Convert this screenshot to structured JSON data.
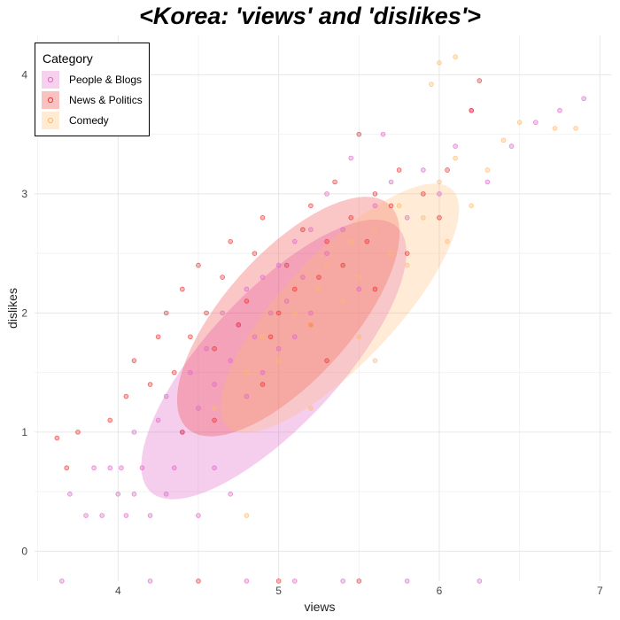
{
  "chart_data": {
    "type": "scatter",
    "title": "<Korea: 'views' and 'dislikes'>",
    "xlabel": "views",
    "ylabel": "dislikes",
    "xlim": [
      3.48,
      7.07
    ],
    "ylim": [
      -0.25,
      4.33
    ],
    "x_ticks": [
      4,
      5,
      6,
      7
    ],
    "y_ticks": [
      0,
      1,
      2,
      3,
      4
    ],
    "grid": true,
    "legend": {
      "title": "Category",
      "placement": "top-left"
    },
    "series": [
      {
        "name": "People & Blogs",
        "color": "#e066c8",
        "ellipse": {
          "center": [
            4.97,
            1.61
          ],
          "semi_axes": [
            1.36,
            0.48
          ],
          "angle_deg": 36
        },
        "points": [
          [
            3.7,
            0.48
          ],
          [
            3.8,
            0.3
          ],
          [
            3.85,
            0.7
          ],
          [
            3.9,
            0.3
          ],
          [
            3.95,
            0.7
          ],
          [
            4.0,
            0.48
          ],
          [
            4.02,
            0.7
          ],
          [
            4.05,
            0.3
          ],
          [
            4.1,
            1.0
          ],
          [
            4.1,
            0.48
          ],
          [
            4.15,
            0.7
          ],
          [
            4.2,
            0.3
          ],
          [
            4.25,
            1.1
          ],
          [
            4.3,
            0.48
          ],
          [
            4.3,
            1.3
          ],
          [
            4.35,
            0.7
          ],
          [
            4.4,
            1.0
          ],
          [
            4.45,
            1.5
          ],
          [
            4.5,
            0.3
          ],
          [
            4.5,
            1.2
          ],
          [
            4.55,
            1.7
          ],
          [
            4.6,
            0.7
          ],
          [
            4.6,
            1.4
          ],
          [
            4.65,
            2.0
          ],
          [
            4.7,
            1.6
          ],
          [
            4.7,
            0.48
          ],
          [
            4.75,
            1.9
          ],
          [
            4.8,
            2.2
          ],
          [
            4.8,
            1.3
          ],
          [
            4.85,
            1.8
          ],
          [
            4.9,
            2.3
          ],
          [
            4.9,
            1.5
          ],
          [
            4.95,
            2.0
          ],
          [
            5.0,
            2.4
          ],
          [
            5.0,
            1.7
          ],
          [
            5.05,
            2.1
          ],
          [
            5.1,
            2.6
          ],
          [
            5.1,
            1.8
          ],
          [
            5.15,
            2.3
          ],
          [
            5.2,
            2.7
          ],
          [
            5.2,
            2.0
          ],
          [
            5.3,
            2.5
          ],
          [
            5.3,
            3.0
          ],
          [
            5.4,
            2.7
          ],
          [
            5.45,
            3.3
          ],
          [
            5.5,
            2.2
          ],
          [
            5.6,
            2.9
          ],
          [
            5.65,
            3.5
          ],
          [
            5.7,
            3.1
          ],
          [
            5.8,
            2.8
          ],
          [
            5.9,
            3.2
          ],
          [
            6.0,
            3.0
          ],
          [
            6.1,
            3.4
          ],
          [
            6.2,
            3.7
          ],
          [
            6.3,
            3.1
          ],
          [
            6.45,
            3.4
          ],
          [
            6.6,
            3.6
          ],
          [
            6.75,
            3.7
          ],
          [
            6.9,
            3.8
          ],
          [
            3.65,
            -0.25
          ],
          [
            4.2,
            -0.25
          ],
          [
            4.8,
            -0.25
          ],
          [
            5.1,
            -0.25
          ],
          [
            5.4,
            -0.25
          ],
          [
            5.8,
            -0.25
          ],
          [
            6.25,
            -0.25
          ]
        ]
      },
      {
        "name": "News & Politics",
        "color": "#ee3333",
        "ellipse": {
          "center": [
            5.06,
            1.97
          ],
          "semi_axes": [
            1.13,
            0.46
          ],
          "angle_deg": 36
        },
        "points": [
          [
            3.62,
            0.95
          ],
          [
            3.68,
            0.7
          ],
          [
            3.75,
            1.0
          ],
          [
            3.95,
            1.1
          ],
          [
            4.05,
            1.3
          ],
          [
            4.1,
            1.6
          ],
          [
            4.2,
            1.4
          ],
          [
            4.25,
            1.8
          ],
          [
            4.3,
            2.0
          ],
          [
            4.35,
            1.5
          ],
          [
            4.4,
            2.2
          ],
          [
            4.45,
            1.8
          ],
          [
            4.5,
            2.4
          ],
          [
            4.55,
            2.0
          ],
          [
            4.6,
            1.7
          ],
          [
            4.65,
            2.3
          ],
          [
            4.7,
            2.6
          ],
          [
            4.75,
            1.9
          ],
          [
            4.8,
            2.1
          ],
          [
            4.85,
            2.5
          ],
          [
            4.9,
            2.8
          ],
          [
            4.95,
            1.8
          ],
          [
            5.0,
            2.0
          ],
          [
            5.05,
            2.4
          ],
          [
            5.1,
            2.2
          ],
          [
            5.15,
            2.7
          ],
          [
            5.2,
            2.9
          ],
          [
            5.25,
            2.3
          ],
          [
            5.3,
            2.6
          ],
          [
            5.35,
            3.1
          ],
          [
            5.4,
            2.4
          ],
          [
            5.45,
            2.8
          ],
          [
            5.5,
            3.5
          ],
          [
            5.55,
            2.6
          ],
          [
            5.6,
            3.0
          ],
          [
            5.7,
            2.9
          ],
          [
            5.75,
            3.2
          ],
          [
            5.8,
            2.5
          ],
          [
            5.9,
            3.0
          ],
          [
            6.0,
            2.8
          ],
          [
            6.05,
            3.2
          ],
          [
            6.2,
            3.7
          ],
          [
            6.25,
            3.95
          ],
          [
            5.3,
            1.6
          ],
          [
            4.9,
            1.4
          ],
          [
            4.6,
            1.1
          ],
          [
            4.4,
            1.0
          ],
          [
            5.6,
            2.2
          ],
          [
            5.2,
            1.9
          ],
          [
            4.5,
            -0.25
          ],
          [
            5.0,
            -0.25
          ],
          [
            5.5,
            -0.25
          ]
        ]
      },
      {
        "name": "Comedy",
        "color": "#ffb86b",
        "ellipse": {
          "center": [
            5.38,
            2.04
          ],
          "semi_axes": [
            1.23,
            0.4
          ],
          "angle_deg": 36
        },
        "points": [
          [
            4.6,
            1.2
          ],
          [
            4.8,
            1.5
          ],
          [
            4.9,
            1.8
          ],
          [
            5.0,
            1.6
          ],
          [
            5.1,
            2.0
          ],
          [
            5.2,
            1.9
          ],
          [
            5.25,
            2.2
          ],
          [
            5.3,
            2.4
          ],
          [
            5.4,
            2.1
          ],
          [
            5.45,
            2.6
          ],
          [
            5.5,
            2.3
          ],
          [
            5.6,
            2.7
          ],
          [
            5.7,
            2.5
          ],
          [
            5.75,
            2.9
          ],
          [
            5.8,
            2.4
          ],
          [
            5.9,
            2.8
          ],
          [
            6.0,
            3.1
          ],
          [
            6.05,
            2.6
          ],
          [
            6.1,
            3.3
          ],
          [
            6.2,
            2.9
          ],
          [
            6.3,
            3.2
          ],
          [
            6.4,
            3.45
          ],
          [
            6.5,
            3.6
          ],
          [
            6.72,
            3.55
          ],
          [
            6.85,
            3.55
          ],
          [
            6.0,
            4.1
          ],
          [
            6.1,
            4.15
          ],
          [
            5.95,
            3.92
          ],
          [
            4.8,
            0.3
          ],
          [
            5.2,
            1.2
          ],
          [
            5.5,
            1.8
          ],
          [
            5.6,
            1.6
          ]
        ]
      }
    ]
  }
}
